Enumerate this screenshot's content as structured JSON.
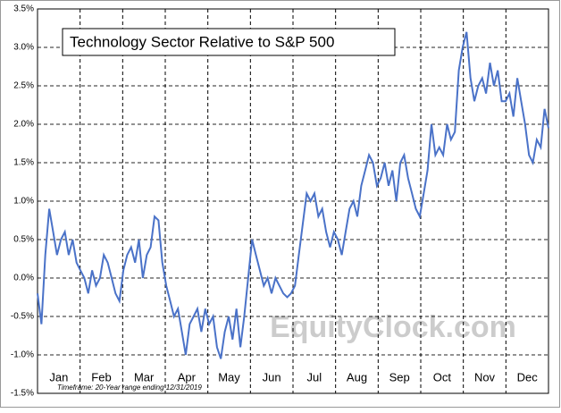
{
  "chart_data": {
    "type": "line",
    "title": "Technology Sector Relative to S&P 500",
    "footnote": "Timeframe: 20-Year range ending 12/31/2019",
    "watermark": "EquityClock.com",
    "month_labels": [
      "Jan",
      "Feb",
      "Mar",
      "Apr",
      "May",
      "Jun",
      "Jul",
      "Aug",
      "Sep",
      "Oct",
      "Nov",
      "Dec"
    ],
    "ylim": [
      -1.5,
      3.5
    ],
    "yticks": [
      {
        "value": -1.5,
        "label": "-1.5%"
      },
      {
        "value": -1.0,
        "label": "-1.0%"
      },
      {
        "value": -0.5,
        "label": "-0.5%"
      },
      {
        "value": 0,
        "label": "0.0%"
      },
      {
        "value": 0.5,
        "label": "0.5%"
      },
      {
        "value": 1.0,
        "label": "1.0%"
      },
      {
        "value": 1.5,
        "label": "1.5%"
      },
      {
        "value": 2.0,
        "label": "2.0%"
      },
      {
        "value": 2.5,
        "label": "2.5%"
      },
      {
        "value": 3.0,
        "label": "3.0%"
      },
      {
        "value": 3.5,
        "label": "3.5%"
      }
    ],
    "series": [
      {
        "name": "Technology Sector Relative to S&P 500",
        "color": "#4a72c8",
        "values": [
          -0.2,
          -0.6,
          0.3,
          0.9,
          0.6,
          0.3,
          0.5,
          0.6,
          0.3,
          0.5,
          0.2,
          0.1,
          0.0,
          -0.2,
          0.1,
          -0.1,
          0.0,
          0.3,
          0.2,
          0.0,
          -0.2,
          -0.3,
          0.1,
          0.3,
          0.4,
          0.2,
          0.5,
          0.0,
          0.3,
          0.4,
          0.8,
          0.75,
          0.2,
          -0.1,
          -0.3,
          -0.5,
          -0.4,
          -0.7,
          -1.0,
          -0.6,
          -0.5,
          -0.4,
          -0.7,
          -0.4,
          -0.6,
          -0.5,
          -0.9,
          -1.05,
          -0.7,
          -0.5,
          -0.8,
          -0.4,
          -0.9,
          -0.5,
          0.0,
          0.5,
          0.3,
          0.1,
          -0.1,
          0.0,
          -0.2,
          0.0,
          -0.1,
          -0.2,
          -0.25,
          -0.2,
          -0.1,
          0.3,
          0.7,
          1.1,
          1.0,
          1.1,
          0.8,
          0.9,
          0.6,
          0.4,
          0.6,
          0.5,
          0.3,
          0.6,
          0.9,
          1.0,
          0.8,
          1.2,
          1.4,
          1.6,
          1.5,
          1.2,
          1.3,
          1.5,
          1.2,
          1.4,
          1.0,
          1.5,
          1.6,
          1.3,
          1.1,
          0.9,
          0.8,
          1.1,
          1.4,
          2.0,
          1.6,
          1.7,
          1.6,
          2.0,
          1.8,
          1.9,
          2.7,
          3.0,
          3.2,
          2.6,
          2.3,
          2.5,
          2.6,
          2.4,
          2.8,
          2.5,
          2.7,
          2.3,
          2.3,
          2.4,
          2.1,
          2.6,
          2.3,
          2.0,
          1.6,
          1.5,
          1.8,
          1.7,
          2.2,
          1.95
        ]
      }
    ],
    "grid": true
  }
}
